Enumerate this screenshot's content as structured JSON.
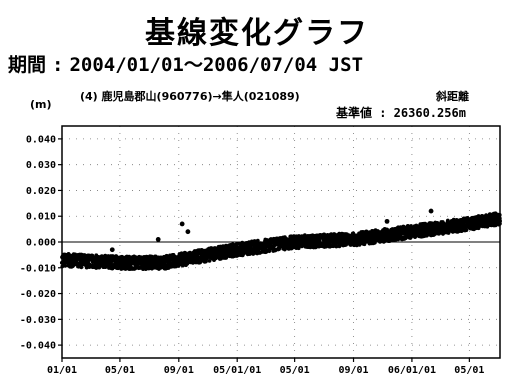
{
  "header": {
    "title": "基線変化グラフ",
    "period_label": "期間",
    "period_sep": ":",
    "period_value": "2004/01/01〜2006/07/04 JST"
  },
  "chart_data": {
    "type": "scatter",
    "station_line": "(4) 鹿児島郡山(960776)→隼人(021089)",
    "component": "斜距離",
    "reference": "基準値 : 26360.256m",
    "ylabel": "(m)",
    "ylim": [
      -0.045,
      0.045
    ],
    "yticks": [
      0.04,
      0.03,
      0.02,
      0.01,
      0.0,
      -0.01,
      -0.02,
      -0.03,
      -0.04
    ],
    "ytick_labels": [
      "0.040",
      "0.030",
      "0.020",
      "0.010",
      "0.000",
      "-0.010",
      "-0.020",
      "-0.030",
      "-0.040"
    ],
    "xlim": [
      "2004/01/01",
      "2006/07/04"
    ],
    "xtick_labels": [
      "01/01",
      "05/01",
      "09/01",
      "05/01/01",
      "05/01",
      "09/01",
      "06/01/01",
      "05/01"
    ],
    "xtick_dates": [
      "2004/01/01",
      "2004/05/01",
      "2004/09/01",
      "2005/01/01",
      "2005/05/01",
      "2005/09/01",
      "2006/01/01",
      "2006/05/01"
    ],
    "grid": true,
    "marker_color": "#000000",
    "trend": [
      {
        "x": "2004/01/01",
        "y": -0.007
      },
      {
        "x": "2004/05/01",
        "y": -0.008
      },
      {
        "x": "2004/08/01",
        "y": -0.008
      },
      {
        "x": "2004/10/01",
        "y": -0.006
      },
      {
        "x": "2005/01/01",
        "y": -0.003
      },
      {
        "x": "2005/05/01",
        "y": 0.0
      },
      {
        "x": "2005/09/01",
        "y": 0.001
      },
      {
        "x": "2006/01/01",
        "y": 0.004
      },
      {
        "x": "2006/05/01",
        "y": 0.007
      },
      {
        "x": "2006/07/04",
        "y": 0.009
      }
    ],
    "spread": 0.0025,
    "outliers": [
      {
        "x": "2004/09/08",
        "y": 0.007
      },
      {
        "x": "2004/09/20",
        "y": 0.004
      },
      {
        "x": "2004/07/20",
        "y": 0.001
      },
      {
        "x": "2006/02/10",
        "y": 0.012
      },
      {
        "x": "2005/11/10",
        "y": 0.008
      },
      {
        "x": "2004/04/15",
        "y": -0.003
      }
    ]
  }
}
